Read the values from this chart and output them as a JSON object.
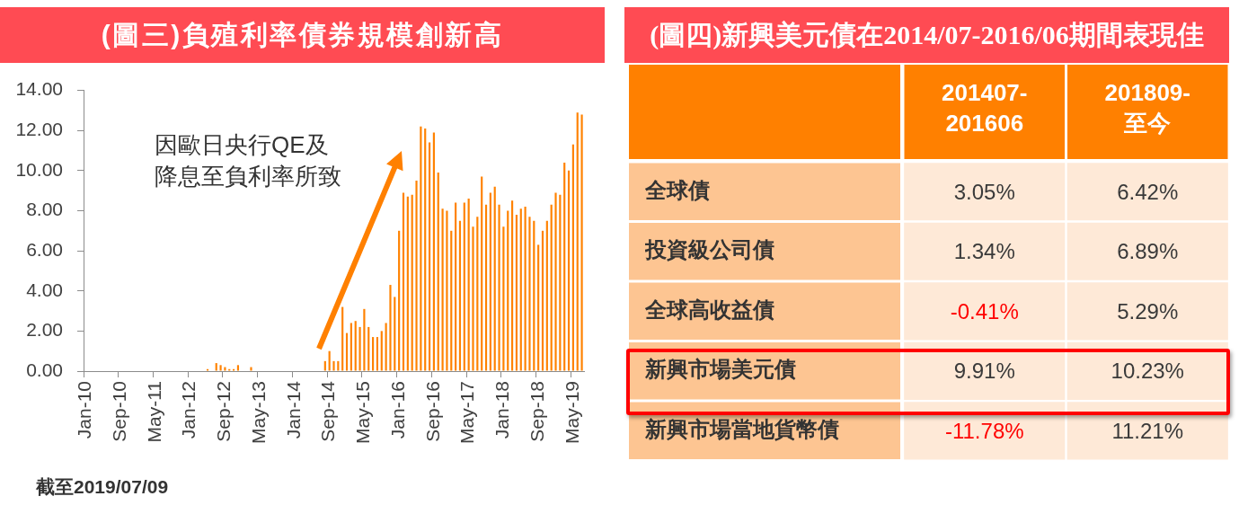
{
  "chart_data": [
    {
      "type": "bar",
      "title": "(圖三)負殖利率債券規模創新高",
      "categories": [
        "Jan-10",
        null,
        null,
        null,
        null,
        null,
        null,
        null,
        "Sep-10",
        null,
        null,
        null,
        null,
        null,
        null,
        null,
        "May-11",
        null,
        null,
        null,
        null,
        null,
        null,
        null,
        "Jan-12",
        null,
        null,
        null,
        null,
        null,
        null,
        null,
        "Sep-12",
        null,
        null,
        null,
        null,
        null,
        null,
        null,
        "May-13",
        null,
        null,
        null,
        null,
        null,
        null,
        null,
        "Jan-14",
        null,
        null,
        null,
        null,
        null,
        null,
        null,
        "Sep-14",
        null,
        null,
        null,
        null,
        null,
        null,
        null,
        "May-15",
        null,
        null,
        null,
        null,
        null,
        null,
        null,
        "Jan-16",
        null,
        null,
        null,
        null,
        null,
        null,
        null,
        "Sep-16",
        null,
        null,
        null,
        null,
        null,
        null,
        null,
        "May-17",
        null,
        null,
        null,
        null,
        null,
        null,
        null,
        "Jan-18",
        null,
        null,
        null,
        null,
        null,
        null,
        null,
        "Sep-18",
        null,
        null,
        null,
        null,
        null,
        null,
        null,
        "May-19",
        null,
        null
      ],
      "values": [
        null,
        null,
        null,
        null,
        null,
        null,
        null,
        null,
        null,
        null,
        null,
        null,
        null,
        null,
        null,
        null,
        null,
        null,
        null,
        null,
        null,
        null,
        null,
        null,
        null,
        null,
        null,
        null,
        0.1,
        null,
        0.4,
        0.3,
        0.2,
        0.1,
        0.1,
        0.3,
        null,
        null,
        0.2,
        null,
        null,
        null,
        null,
        null,
        null,
        null,
        null,
        null,
        null,
        null,
        null,
        null,
        null,
        null,
        null,
        0.5,
        1.0,
        0.5,
        0.5,
        3.2,
        1.9,
        2.4,
        2.5,
        2.2,
        3.1,
        2.2,
        1.7,
        1.7,
        2.0,
        2.4,
        4.3,
        3.7,
        7.0,
        8.9,
        8.7,
        8.8,
        9.5,
        12.2,
        12.1,
        11.4,
        11.9,
        9.9,
        8.1,
        8.0,
        7.0,
        8.4,
        7.5,
        8.4,
        8.6,
        7.2,
        7.7,
        9.7,
        8.3,
        8.9,
        9.2,
        8.3,
        7.2,
        8.0,
        8.5,
        7.8,
        8.1,
        8.2,
        7.7,
        7.5,
        6.3,
        7.0,
        7.5,
        8.3,
        8.9,
        8.8,
        10.4,
        10.0,
        11.3,
        12.9,
        12.8
      ],
      "color": "#ff8200",
      "ylim": [
        0,
        14
      ],
      "yticks": [
        {
          "value": 0,
          "label": "0.00"
        },
        {
          "value": 2,
          "label": "2.00"
        },
        {
          "value": 4,
          "label": "4.00"
        },
        {
          "value": 6,
          "label": "6.00"
        },
        {
          "value": 8,
          "label": "8.00"
        },
        {
          "value": 10,
          "label": "10.00"
        },
        {
          "value": 12,
          "label": "12.00"
        },
        {
          "value": 14,
          "label": "14.00"
        }
      ],
      "annotations": [
        "因歐日央行QE及降息至負利率所致",
        "截至2019/07/09"
      ]
    },
    {
      "type": "heatmap",
      "title": "(圖四)新興美元債在2014/07-2016/06期間表現佳",
      "categories": [
        "201407-201606",
        "201809-至今"
      ],
      "y_categories": [
        "全球債",
        "投資級公司債",
        "全球高收益債",
        "新興市場美元債",
        "新興市場當地貨幣債"
      ],
      "cells": [
        [
          3.05,
          6.42
        ],
        [
          1.34,
          6.89
        ],
        [
          -0.41,
          5.29
        ],
        [
          9.91,
          10.23
        ],
        [
          -11.78,
          11.21
        ]
      ],
      "cell_labels": [
        [
          "3.05%",
          "6.42%"
        ],
        [
          "1.34%",
          "6.89%"
        ],
        [
          "-0.41%",
          "5.29%"
        ],
        [
          "9.91%",
          "10.23%"
        ],
        [
          "-11.78%",
          "11.21%"
        ]
      ],
      "color": "#fee9d7"
    }
  ]
}
